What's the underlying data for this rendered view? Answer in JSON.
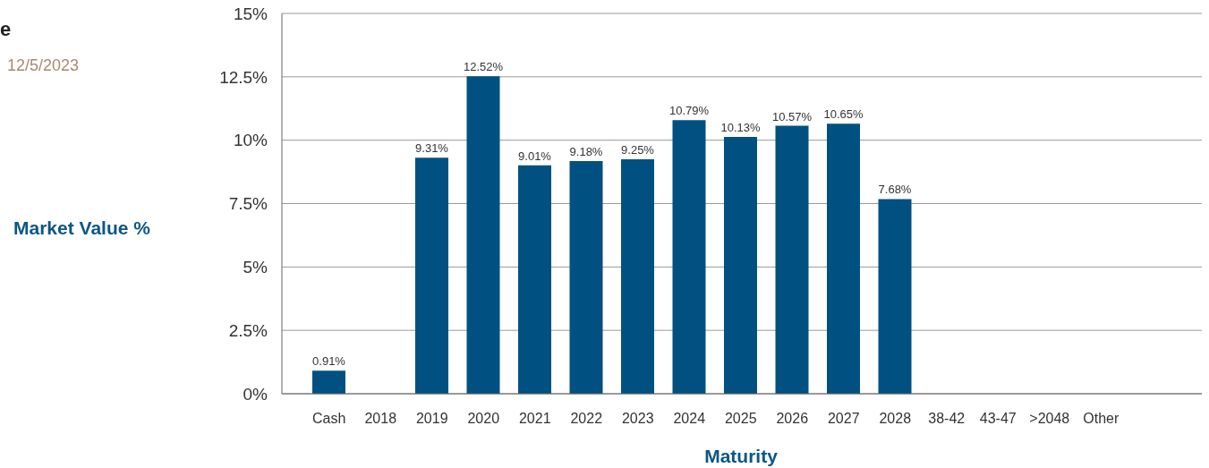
{
  "chart_data": {
    "type": "bar",
    "title": "e",
    "subtitle": "12/5/2023",
    "xlabel": "Maturity",
    "ylabel": "Market Value %",
    "categories": [
      "Cash",
      "2018",
      "2019",
      "2020",
      "2021",
      "2022",
      "2023",
      "2024",
      "2025",
      "2026",
      "2027",
      "2028",
      "38-42",
      "43-47",
      ">2048",
      "Other"
    ],
    "values": [
      0.91,
      null,
      9.31,
      12.52,
      9.01,
      9.18,
      9.25,
      10.79,
      10.13,
      10.57,
      10.65,
      7.68,
      null,
      null,
      null,
      null
    ],
    "value_labels": [
      "0.91%",
      null,
      "9.31%",
      "12.52%",
      "9.01%",
      "9.18%",
      "9.25%",
      "10.79%",
      "10.13%",
      "10.57%",
      "10.65%",
      "7.68%",
      null,
      null,
      null,
      null
    ],
    "color": "#005182",
    "ylim": [
      0,
      15
    ],
    "yticks": [
      {
        "value": 0,
        "label": "0%"
      },
      {
        "value": 2.5,
        "label": "2.5%"
      },
      {
        "value": 5,
        "label": "5%"
      },
      {
        "value": 7.5,
        "label": "7.5%"
      },
      {
        "value": 10,
        "label": "10%"
      },
      {
        "value": 12.5,
        "label": "12.5%"
      },
      {
        "value": 15,
        "label": "15%"
      }
    ],
    "grid": "y"
  }
}
